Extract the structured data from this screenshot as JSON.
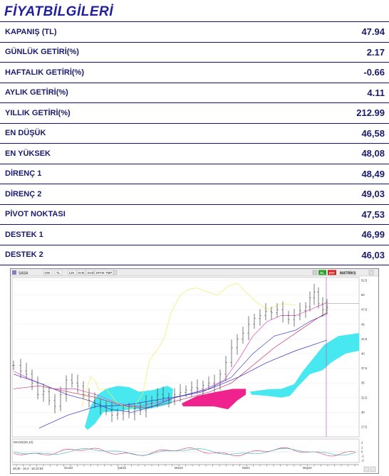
{
  "header": {
    "title": "FİYATBİLGİLERİ"
  },
  "rows": [
    {
      "label": "KAPANIŞ (TL)",
      "value": "47.94"
    },
    {
      "label": "GÜNLÜK GETİRİ(%)",
      "value": "2.17"
    },
    {
      "label": "HAFTALIK GETİRİ(%)",
      "value": "-0.66"
    },
    {
      "label": "AYLIK GETİRİ(%)",
      "value": "4.11"
    },
    {
      "label": "YILLIK  GETİRİ(%)",
      "value": "212.99"
    },
    {
      "label": "EN DÜŞÜK",
      "value": "46,58"
    },
    {
      "label": "EN YÜKSEK",
      "value": "48,08"
    },
    {
      "label": "DİRENÇ 1",
      "value": "48,49"
    },
    {
      "label": "DİRENÇ 2",
      "value": "49,03"
    },
    {
      "label": "PİVOT NOKTASI",
      "value": "47,53"
    },
    {
      "label": "DESTEK 1",
      "value": "46,99"
    },
    {
      "label": "DESTEK 2",
      "value": "46,03"
    }
  ],
  "chart": {
    "toolbar": {
      "symbol": "SASA",
      "buttons": [
        "GW",
        "TL",
        "12K",
        "KHK",
        "SVD",
        "SPHK TMP"
      ],
      "al_label": "AL",
      "sat_label": "SAT",
      "matriks_label": "MATRİKS"
    },
    "info_text": "48,30 - 16.3 - 16:10:53",
    "sub_panel_label": "MACD(26,12)",
    "price_ticks": [
      "52,5",
      "50",
      "47,5",
      "45",
      "42,5",
      "40",
      "37,5",
      "35",
      "32,5",
      "30",
      "27,5"
    ],
    "sub_ticks": [
      "2",
      "1",
      "0",
      "-1",
      "-2"
    ],
    "x_ticks": [
      "Oca22",
      "Şub22",
      "Mar22",
      "Nis22",
      "May22"
    ],
    "colors": {
      "cloud_bull": "#33e6ee",
      "cloud_bear": "#ee1688",
      "candle": "#444444",
      "ma_pink": "#e060c8",
      "ma_blue": "#3030c8",
      "ma_yellow": "#f0ee60",
      "ma_red": "#d03060"
    }
  }
}
